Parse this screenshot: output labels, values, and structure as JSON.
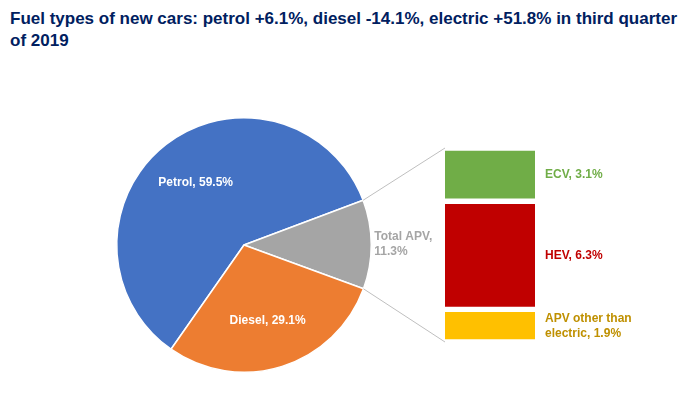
{
  "chart_data": [
    {
      "type": "pie",
      "title": "Fuel types of new cars: petrol +6.1%, diesel -14.1%, electric +51.8% in third quarter of 2019",
      "categories": [
        "Petrol",
        "Total APV",
        "Diesel"
      ],
      "values": [
        59.5,
        11.3,
        29.1
      ],
      "value_labels": [
        "Petrol, 59.5%",
        "Total APV, 11.3%",
        "Diesel, 29.1%"
      ],
      "colors": [
        "#4472c4",
        "#a5a5a5",
        "#ed7d31"
      ],
      "data_labels": true
    },
    {
      "type": "bar",
      "stacked": true,
      "categories": [
        "ECV",
        "HEV",
        "APV other than electric"
      ],
      "values": [
        3.1,
        6.3,
        1.9
      ],
      "value_labels": [
        "ECV, 3.1%",
        "HEV, 6.3%",
        "APV other than electric, 1.9%"
      ],
      "colors": [
        "#70ad47",
        "#c00000",
        "#ffc000"
      ],
      "ylim": [
        0,
        11.3
      ],
      "data_labels": true,
      "tick_labels": false
    }
  ]
}
